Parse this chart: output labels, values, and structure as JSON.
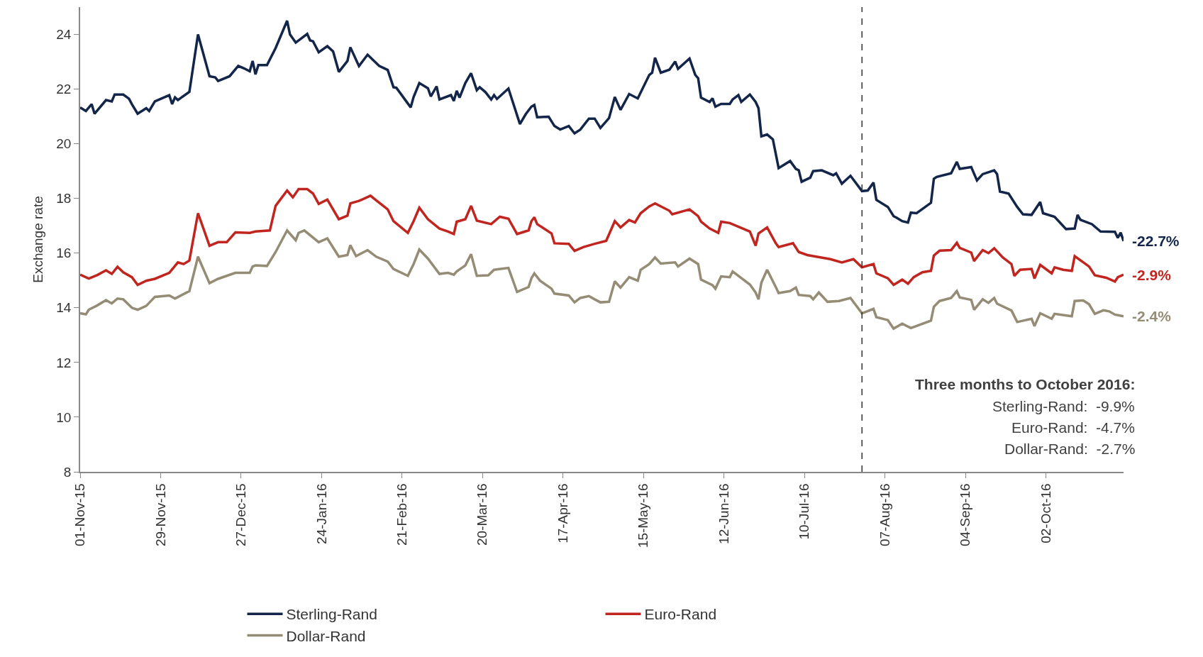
{
  "chart_data": {
    "type": "line",
    "ylabel": "Exchange rate",
    "series": [
      {
        "name": "Sterling-Rand",
        "color": "#13264a",
        "x": [
          "2015-11-01",
          "2015-11-03",
          "2015-11-05",
          "2015-11-06",
          "2015-11-10",
          "2015-11-12",
          "2015-11-13",
          "2015-11-16",
          "2015-11-18",
          "2015-11-19",
          "2015-11-21",
          "2015-11-24",
          "2015-11-25",
          "2015-11-27",
          "2015-12-02",
          "2015-12-03",
          "2015-12-04",
          "2015-12-05",
          "2015-12-09",
          "2015-12-12",
          "2015-12-16",
          "2015-12-18",
          "2015-12-19",
          "2015-12-23",
          "2015-12-26",
          "2015-12-28",
          "2015-12-30",
          "2015-12-31",
          "2016-01-01",
          "2016-01-02",
          "2016-01-05",
          "2016-01-08",
          "2016-01-12",
          "2016-01-13",
          "2016-01-15",
          "2016-01-19",
          "2016-01-20",
          "2016-01-21",
          "2016-01-23",
          "2016-01-26",
          "2016-01-28",
          "2016-01-30",
          "2016-02-02",
          "2016-02-03",
          "2016-02-06",
          "2016-02-09",
          "2016-02-13",
          "2016-02-16",
          "2016-02-18",
          "2016-02-19",
          "2016-02-24",
          "2016-02-25",
          "2016-02-27",
          "2016-03-01",
          "2016-03-02",
          "2016-03-04",
          "2016-03-05",
          "2016-03-09",
          "2016-03-10",
          "2016-03-11",
          "2016-03-12",
          "2016-03-14",
          "2016-03-16",
          "2016-03-18",
          "2016-03-19",
          "2016-03-21",
          "2016-03-23",
          "2016-03-24",
          "2016-03-25",
          "2016-03-29",
          "2016-04-02",
          "2016-04-04",
          "2016-04-06",
          "2016-04-07",
          "2016-04-08",
          "2016-04-12",
          "2016-04-14",
          "2016-04-16",
          "2016-04-19",
          "2016-04-21",
          "2016-04-23",
          "2016-04-26",
          "2016-04-28",
          "2016-04-30",
          "2016-05-03",
          "2016-05-05",
          "2016-05-07",
          "2016-05-10",
          "2016-05-13",
          "2016-05-17",
          "2016-05-18",
          "2016-05-19",
          "2016-05-21",
          "2016-05-24",
          "2016-05-26",
          "2016-05-27",
          "2016-05-31",
          "2016-06-02",
          "2016-06-03",
          "2016-06-04",
          "2016-06-07",
          "2016-06-08",
          "2016-06-09",
          "2016-06-11",
          "2016-06-14",
          "2016-06-15",
          "2016-06-17",
          "2016-06-18",
          "2016-06-21",
          "2016-06-23",
          "2016-06-24",
          "2016-06-25",
          "2016-06-27",
          "2016-06-29",
          "2016-07-01",
          "2016-07-05",
          "2016-07-07",
          "2016-07-08",
          "2016-07-09",
          "2016-07-12",
          "2016-07-13",
          "2016-07-16",
          "2016-07-20",
          "2016-07-21",
          "2016-07-23",
          "2016-07-26",
          "2016-07-30",
          "2016-08-01",
          "2016-08-03",
          "2016-08-04",
          "2016-08-08",
          "2016-08-10",
          "2016-08-11",
          "2016-08-13",
          "2016-08-15",
          "2016-08-16",
          "2016-08-18",
          "2016-08-23",
          "2016-08-24",
          "2016-08-25",
          "2016-08-30",
          "2016-09-01",
          "2016-09-02",
          "2016-09-06",
          "2016-09-08",
          "2016-09-10",
          "2016-09-14",
          "2016-09-15",
          "2016-09-16",
          "2016-09-19",
          "2016-09-22",
          "2016-09-24",
          "2016-09-27",
          "2016-09-30",
          "2016-10-01",
          "2016-10-05",
          "2016-10-09",
          "2016-10-12",
          "2016-10-13",
          "2016-10-14",
          "2016-10-18",
          "2016-10-21",
          "2016-10-26",
          "2016-10-27",
          "2016-10-28",
          "2016-10-29"
        ],
        "values": [
          21.33,
          21.2,
          21.45,
          21.1,
          21.6,
          21.55,
          21.8,
          21.8,
          21.65,
          21.45,
          21.1,
          21.3,
          21.2,
          21.55,
          21.78,
          21.45,
          21.7,
          21.6,
          21.9,
          24.0,
          22.47,
          22.43,
          22.3,
          22.47,
          22.85,
          22.76,
          22.65,
          23.03,
          22.54,
          22.88,
          22.88,
          23.5,
          24.5,
          24.0,
          23.7,
          24.02,
          23.78,
          23.75,
          23.35,
          23.57,
          23.38,
          22.63,
          23.03,
          23.53,
          22.84,
          23.26,
          22.85,
          22.7,
          22.07,
          22.05,
          21.33,
          21.71,
          22.22,
          22.03,
          21.73,
          22.1,
          21.62,
          21.78,
          21.57,
          21.94,
          21.69,
          22.22,
          22.58,
          21.96,
          22.07,
          21.89,
          21.62,
          21.78,
          21.64,
          22.02,
          20.72,
          21.08,
          21.36,
          21.42,
          20.97,
          20.99,
          20.65,
          20.52,
          20.65,
          20.38,
          20.52,
          20.92,
          20.92,
          20.58,
          20.94,
          21.71,
          21.24,
          21.82,
          21.66,
          22.52,
          22.6,
          23.15,
          22.6,
          22.71,
          23.01,
          22.74,
          23.12,
          22.52,
          22.4,
          21.69,
          21.53,
          21.66,
          21.36,
          21.46,
          21.46,
          21.62,
          21.78,
          21.53,
          21.8,
          21.53,
          21.3,
          20.27,
          20.34,
          20.16,
          19.11,
          19.37,
          19.08,
          19.03,
          18.61,
          18.76,
          19.0,
          19.03,
          18.85,
          18.92,
          18.54,
          18.83,
          18.27,
          18.29,
          18.58,
          17.95,
          17.69,
          17.35,
          17.3,
          17.17,
          17.12,
          17.48,
          17.46,
          17.84,
          18.72,
          18.79,
          18.92,
          19.34,
          19.08,
          19.15,
          18.66,
          18.89,
          19.03,
          18.89,
          18.25,
          18.18,
          17.69,
          17.42,
          17.4,
          17.87,
          17.46,
          17.33,
          16.88,
          16.9,
          17.4,
          17.22,
          17.06,
          16.79,
          16.78,
          16.56,
          16.75,
          16.44
        ]
      },
      {
        "name": "Euro-Rand",
        "color": "#c0261f",
        "x": [
          "2015-11-01",
          "2015-11-04",
          "2015-11-07",
          "2015-11-10",
          "2015-11-12",
          "2015-11-14",
          "2015-11-16",
          "2015-11-19",
          "2015-11-21",
          "2015-11-24",
          "2015-11-27",
          "2015-12-02",
          "2015-12-05",
          "2015-12-07",
          "2015-12-09",
          "2015-12-12",
          "2015-12-16",
          "2015-12-19",
          "2015-12-22",
          "2015-12-25",
          "2015-12-30",
          "2016-01-01",
          "2016-01-06",
          "2016-01-08",
          "2016-01-12",
          "2016-01-14",
          "2016-01-16",
          "2016-01-19",
          "2016-01-21",
          "2016-01-23",
          "2016-01-26",
          "2016-01-30",
          "2016-02-02",
          "2016-02-03",
          "2016-02-06",
          "2016-02-10",
          "2016-02-12",
          "2016-02-16",
          "2016-02-18",
          "2016-02-23",
          "2016-02-25",
          "2016-02-27",
          "2016-03-01",
          "2016-03-05",
          "2016-03-08",
          "2016-03-10",
          "2016-03-11",
          "2016-03-14",
          "2016-03-16",
          "2016-03-18",
          "2016-03-23",
          "2016-03-26",
          "2016-03-29",
          "2016-04-01",
          "2016-04-05",
          "2016-04-06",
          "2016-04-07",
          "2016-04-08",
          "2016-04-13",
          "2016-04-14",
          "2016-04-19",
          "2016-04-21",
          "2016-04-24",
          "2016-04-28",
          "2016-05-02",
          "2016-05-05",
          "2016-05-07",
          "2016-05-10",
          "2016-05-12",
          "2016-05-14",
          "2016-05-17",
          "2016-05-19",
          "2016-05-24",
          "2016-05-25",
          "2016-05-31",
          "2016-06-03",
          "2016-06-04",
          "2016-06-07",
          "2016-06-10",
          "2016-06-11",
          "2016-06-14",
          "2016-06-21",
          "2016-06-23",
          "2016-06-24",
          "2016-06-27",
          "2016-06-30",
          "2016-07-01",
          "2016-07-06",
          "2016-07-08",
          "2016-07-11",
          "2016-07-19",
          "2016-07-23",
          "2016-07-27",
          "2016-07-30",
          "2016-08-03",
          "2016-08-04",
          "2016-08-08",
          "2016-08-10",
          "2016-08-13",
          "2016-08-15",
          "2016-08-17",
          "2016-08-20",
          "2016-08-23",
          "2016-08-24",
          "2016-08-26",
          "2016-08-30",
          "2016-09-01",
          "2016-09-02",
          "2016-09-06",
          "2016-09-07",
          "2016-09-10",
          "2016-09-12",
          "2016-09-14",
          "2016-09-17",
          "2016-09-20",
          "2016-09-21",
          "2016-09-23",
          "2016-09-27",
          "2016-09-28",
          "2016-09-30",
          "2016-10-04",
          "2016-10-05",
          "2016-10-08",
          "2016-10-11",
          "2016-10-12",
          "2016-10-17",
          "2016-10-19",
          "2016-10-23",
          "2016-10-26",
          "2016-10-27",
          "2016-10-29"
        ],
        "values": [
          15.21,
          15.07,
          15.2,
          15.37,
          15.24,
          15.5,
          15.3,
          15.12,
          14.84,
          14.99,
          15.06,
          15.28,
          15.66,
          15.6,
          15.73,
          17.46,
          16.27,
          16.4,
          16.4,
          16.76,
          16.74,
          16.79,
          16.83,
          17.73,
          18.29,
          18.04,
          18.34,
          18.34,
          18.18,
          17.8,
          17.96,
          17.24,
          17.37,
          17.82,
          17.91,
          18.1,
          17.93,
          17.6,
          17.17,
          16.74,
          17.17,
          17.66,
          17.24,
          16.9,
          16.79,
          16.7,
          17.15,
          17.24,
          17.73,
          17.19,
          17.06,
          17.33,
          17.26,
          16.7,
          16.83,
          17.17,
          17.31,
          17.06,
          16.72,
          16.36,
          16.34,
          16.08,
          16.22,
          16.34,
          16.45,
          17.17,
          16.94,
          17.21,
          17.12,
          17.46,
          17.71,
          17.82,
          17.55,
          17.42,
          17.6,
          17.35,
          17.15,
          16.9,
          16.74,
          17.15,
          17.1,
          16.79,
          16.27,
          16.72,
          16.94,
          16.36,
          16.22,
          16.36,
          16.04,
          15.93,
          15.78,
          15.66,
          15.78,
          15.48,
          15.6,
          15.26,
          15.08,
          14.84,
          15.03,
          14.88,
          15.12,
          15.3,
          15.35,
          15.91,
          16.09,
          16.11,
          16.38,
          16.19,
          16.02,
          15.71,
          16.11,
          16.0,
          16.18,
          15.84,
          15.6,
          15.17,
          15.39,
          15.42,
          15.07,
          15.57,
          15.26,
          15.48,
          15.39,
          15.35,
          15.89,
          15.51,
          15.19,
          15.1,
          14.96,
          15.12,
          15.21
        ]
      },
      {
        "name": "Dollar-Rand",
        "color": "#958c76",
        "x": [
          "2015-11-01",
          "2015-11-03",
          "2015-11-04",
          "2015-11-07",
          "2015-11-10",
          "2015-11-12",
          "2015-11-14",
          "2015-11-16",
          "2015-11-19",
          "2015-11-21",
          "2015-11-24",
          "2015-11-27",
          "2015-12-02",
          "2015-12-04",
          "2015-12-09",
          "2015-12-12",
          "2015-12-16",
          "2015-12-19",
          "2015-12-25",
          "2015-12-30",
          "2015-12-31",
          "2016-01-01",
          "2016-01-05",
          "2016-01-08",
          "2016-01-12",
          "2016-01-15",
          "2016-01-16",
          "2016-01-18",
          "2016-01-23",
          "2016-01-26",
          "2016-01-30",
          "2016-02-02",
          "2016-02-03",
          "2016-02-05",
          "2016-02-09",
          "2016-02-12",
          "2016-02-16",
          "2016-02-18",
          "2016-02-23",
          "2016-02-25",
          "2016-02-27",
          "2016-03-01",
          "2016-03-05",
          "2016-03-08",
          "2016-03-10",
          "2016-03-11",
          "2016-03-14",
          "2016-03-16",
          "2016-03-18",
          "2016-03-22",
          "2016-03-24",
          "2016-03-29",
          "2016-04-01",
          "2016-04-05",
          "2016-04-06",
          "2016-04-07",
          "2016-04-09",
          "2016-04-13",
          "2016-04-14",
          "2016-04-19",
          "2016-04-21",
          "2016-04-23",
          "2016-04-26",
          "2016-04-28",
          "2016-04-30",
          "2016-05-03",
          "2016-05-05",
          "2016-05-07",
          "2016-05-10",
          "2016-05-13",
          "2016-05-14",
          "2016-05-17",
          "2016-05-19",
          "2016-05-21",
          "2016-05-26",
          "2016-05-27",
          "2016-05-31",
          "2016-06-03",
          "2016-06-04",
          "2016-06-08",
          "2016-06-09",
          "2016-06-11",
          "2016-06-14",
          "2016-06-15",
          "2016-06-21",
          "2016-06-23",
          "2016-06-24",
          "2016-06-25",
          "2016-06-27",
          "2016-06-30",
          "2016-07-01",
          "2016-07-05",
          "2016-07-07",
          "2016-07-08",
          "2016-07-12",
          "2016-07-13",
          "2016-07-15",
          "2016-07-18",
          "2016-07-22",
          "2016-07-26",
          "2016-07-30",
          "2016-08-03",
          "2016-08-04",
          "2016-08-08",
          "2016-08-10",
          "2016-08-13",
          "2016-08-16",
          "2016-08-23",
          "2016-08-24",
          "2016-08-26",
          "2016-08-30",
          "2016-09-01",
          "2016-09-02",
          "2016-09-06",
          "2016-09-07",
          "2016-09-10",
          "2016-09-12",
          "2016-09-14",
          "2016-09-15",
          "2016-09-20",
          "2016-09-22",
          "2016-09-27",
          "2016-09-28",
          "2016-09-30",
          "2016-10-04",
          "2016-10-05",
          "2016-10-11",
          "2016-10-12",
          "2016-10-15",
          "2016-10-17",
          "2016-10-19",
          "2016-10-22",
          "2016-10-24",
          "2016-10-26",
          "2016-10-29"
        ],
        "values": [
          13.8,
          13.76,
          13.93,
          14.09,
          14.28,
          14.16,
          14.34,
          14.31,
          14.0,
          13.93,
          14.07,
          14.4,
          14.45,
          14.34,
          14.61,
          15.87,
          14.9,
          15.06,
          15.28,
          15.28,
          15.51,
          15.55,
          15.53,
          16.04,
          16.83,
          16.47,
          16.74,
          16.83,
          16.4,
          16.54,
          15.87,
          15.93,
          16.29,
          15.89,
          16.11,
          15.87,
          15.69,
          15.42,
          15.17,
          15.6,
          16.13,
          15.8,
          15.24,
          15.28,
          15.21,
          15.33,
          15.55,
          15.96,
          15.17,
          15.19,
          15.39,
          15.46,
          14.58,
          14.76,
          15.08,
          15.26,
          14.99,
          14.7,
          14.52,
          14.45,
          14.2,
          14.36,
          14.43,
          14.31,
          14.2,
          14.22,
          14.97,
          14.74,
          15.12,
          14.99,
          15.39,
          15.6,
          15.84,
          15.62,
          15.66,
          15.51,
          15.8,
          15.6,
          15.03,
          14.83,
          14.7,
          15.15,
          15.12,
          15.33,
          14.85,
          14.56,
          14.31,
          14.92,
          15.39,
          14.76,
          14.54,
          14.61,
          14.74,
          14.47,
          14.43,
          14.31,
          14.56,
          14.22,
          14.25,
          14.36,
          13.8,
          13.96,
          13.66,
          13.55,
          13.24,
          13.42,
          13.26,
          13.53,
          14.04,
          14.25,
          14.36,
          14.61,
          14.38,
          14.29,
          13.93,
          14.31,
          14.18,
          14.36,
          14.15,
          13.9,
          13.48,
          13.6,
          13.33,
          13.8,
          13.6,
          13.78,
          13.69,
          14.25,
          14.27,
          14.13,
          13.78,
          13.91,
          13.87,
          13.75,
          13.69
        ]
      }
    ],
    "xlim": [
      "2015-11-01",
      "2016-10-29"
    ],
    "xticks": [
      {
        "value": "2015-11-01",
        "label": "01-Nov-15"
      },
      {
        "value": "2015-11-29",
        "label": "29-Nov-15"
      },
      {
        "value": "2015-12-27",
        "label": "27-Dec-15"
      },
      {
        "value": "2016-01-24",
        "label": "24-Jan-16"
      },
      {
        "value": "2016-02-21",
        "label": "21-Feb-16"
      },
      {
        "value": "2016-03-20",
        "label": "20-Mar-16"
      },
      {
        "value": "2016-04-17",
        "label": "17-Apr-16"
      },
      {
        "value": "2016-05-15",
        "label": "15-May-16"
      },
      {
        "value": "2016-06-12",
        "label": "12-Jun-16"
      },
      {
        "value": "2016-07-10",
        "label": "10-Jul-16"
      },
      {
        "value": "2016-08-07",
        "label": "07-Aug-16"
      },
      {
        "value": "2016-09-04",
        "label": "04-Sep-16"
      },
      {
        "value": "2016-10-02",
        "label": "02-Oct-16"
      }
    ],
    "ylim": [
      8,
      25
    ],
    "yticks": [
      8,
      10,
      12,
      14,
      16,
      18,
      20,
      22,
      24
    ],
    "ref_lines": [
      {
        "axis": "x",
        "value": "2016-07-30",
        "color": "#333333",
        "line_style": "dashed"
      }
    ],
    "annotations": [
      {
        "text": "-22.7%",
        "x": "2016-10-29",
        "y": 16.44
      },
      {
        "text": "-2.9%",
        "x": "2016-10-29",
        "y": 15.21
      },
      {
        "text": "-2.4%",
        "x": "2016-10-29",
        "y": 13.69
      },
      "Three months to October 2016:",
      "Sterling-Rand:  -9.9%",
      "Euro-Rand:  -4.7%",
      "Dollar-Rand:  -2.7%"
    ],
    "legend": "bottom",
    "marker": "none",
    "line_style": "solid"
  }
}
